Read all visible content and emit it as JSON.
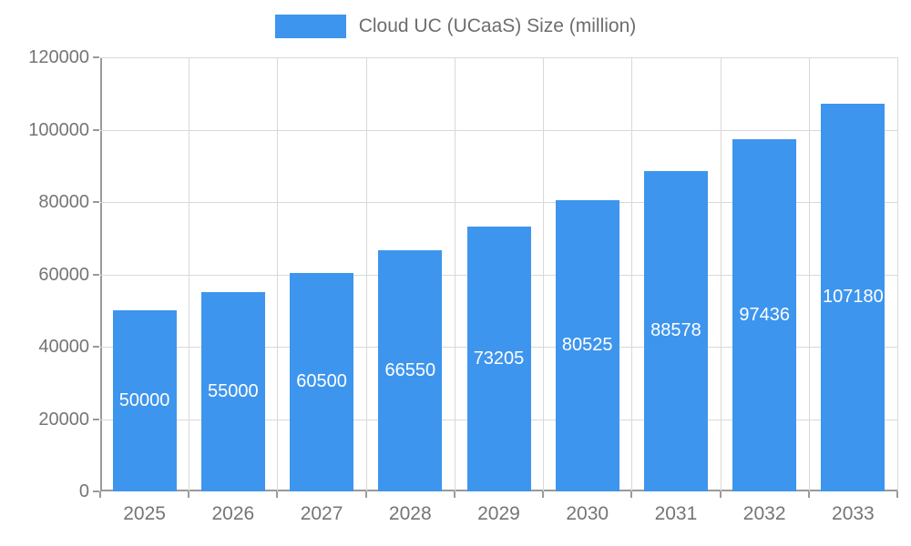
{
  "chart_data": {
    "type": "bar",
    "title": "Cloud UC (UCaaS) Size (million)",
    "categories": [
      "2025",
      "2026",
      "2027",
      "2028",
      "2029",
      "2030",
      "2031",
      "2032",
      "2033"
    ],
    "values": [
      50000,
      55000,
      60500,
      66550,
      73205,
      80525,
      88578,
      97436,
      107180
    ],
    "value_labels": [
      "50000",
      "55000",
      "60500",
      "66550",
      "73205",
      "80525",
      "88578",
      "97436",
      "107180"
    ],
    "xlabel": "",
    "ylabel": "",
    "ylim": [
      0,
      120000
    ],
    "ytick_step": 20000,
    "ytick_labels": [
      "0",
      "20000",
      "40000",
      "60000",
      "80000",
      "100000",
      "120000"
    ],
    "grid": true,
    "legend_position": "top",
    "colors": {
      "bar": "#3e95ed",
      "bar_value_text": "#ffffff",
      "axis_text": "#757575",
      "gridline": "#d9d9d9",
      "axis_line": "#9a9a9a",
      "legend_text": "#6d6d6d",
      "background": "#ffffff"
    }
  }
}
